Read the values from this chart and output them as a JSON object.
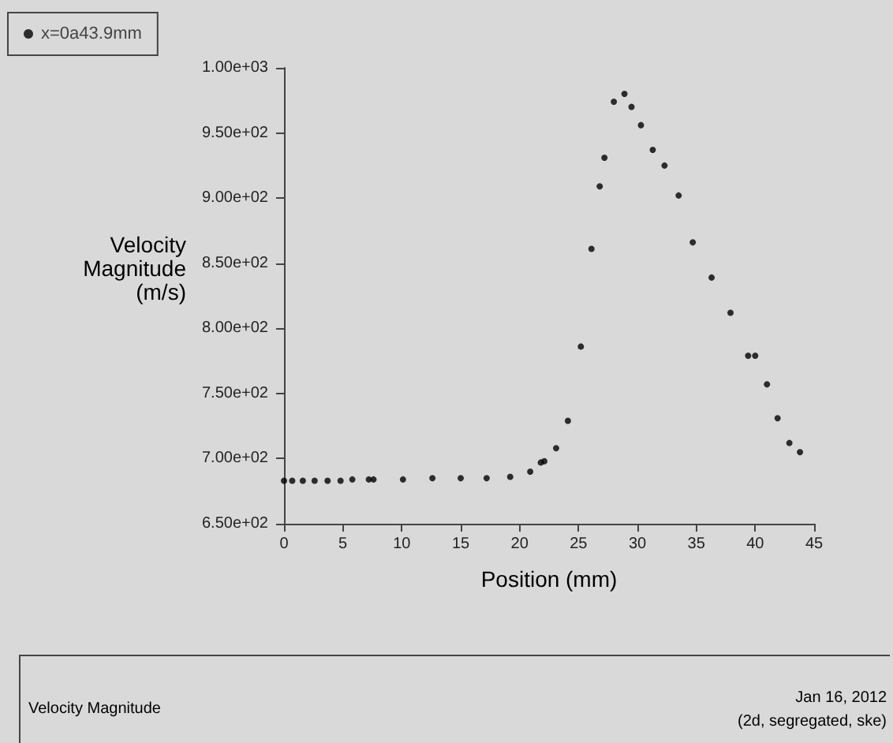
{
  "chart_data": {
    "type": "scatter",
    "xlabel": "Position (mm)",
    "ylabel": "Velocity\nMagnitude\n(m/s)",
    "series": [
      {
        "name": "x=0a43.9mm",
        "color": "#000000",
        "x": [
          0,
          0.7,
          1.6,
          2.6,
          3.7,
          4.8,
          5.8,
          7.2,
          7.6,
          10.1,
          12.6,
          15.0,
          17.2,
          19.2,
          20.9,
          21.8,
          22.1,
          23.1,
          24.1,
          25.2,
          26.1,
          26.8,
          27.2,
          28.0,
          28.9,
          29.5,
          30.3,
          31.3,
          32.3,
          33.5,
          34.7,
          36.3,
          37.9,
          39.4,
          40.0,
          41.0,
          41.9,
          42.9,
          43.8
        ],
        "values": [
          683,
          683,
          683,
          683,
          683,
          683,
          684,
          684,
          684,
          684,
          685,
          685,
          685,
          686,
          690,
          697,
          698,
          708,
          729,
          786,
          861,
          909,
          931,
          974,
          980,
          970,
          956,
          937,
          925,
          902,
          866,
          839,
          812,
          779,
          779,
          757,
          731,
          712,
          705
        ]
      }
    ],
    "xlim": [
      0,
      45
    ],
    "xticks": [
      0,
      5,
      10,
      15,
      20,
      25,
      30,
      35,
      40,
      45
    ],
    "ylim": [
      650,
      1000
    ],
    "yticks": [
      {
        "value": 650,
        "label": "6.50e+02"
      },
      {
        "value": 700,
        "label": "7.00e+02"
      },
      {
        "value": 750,
        "label": "7.50e+02"
      },
      {
        "value": 800,
        "label": "8.00e+02"
      },
      {
        "value": 850,
        "label": "8.50e+02"
      },
      {
        "value": 900,
        "label": "9.00e+02"
      },
      {
        "value": 950,
        "label": "9.50e+02"
      },
      {
        "value": 1000,
        "label": "1.00e+03"
      }
    ],
    "grid": false,
    "legend": "top left",
    "marker": "circle",
    "annotations": [
      "Velocity Magnitude",
      "Jan 16, 2012",
      "(2d, segregated, ske)"
    ]
  }
}
